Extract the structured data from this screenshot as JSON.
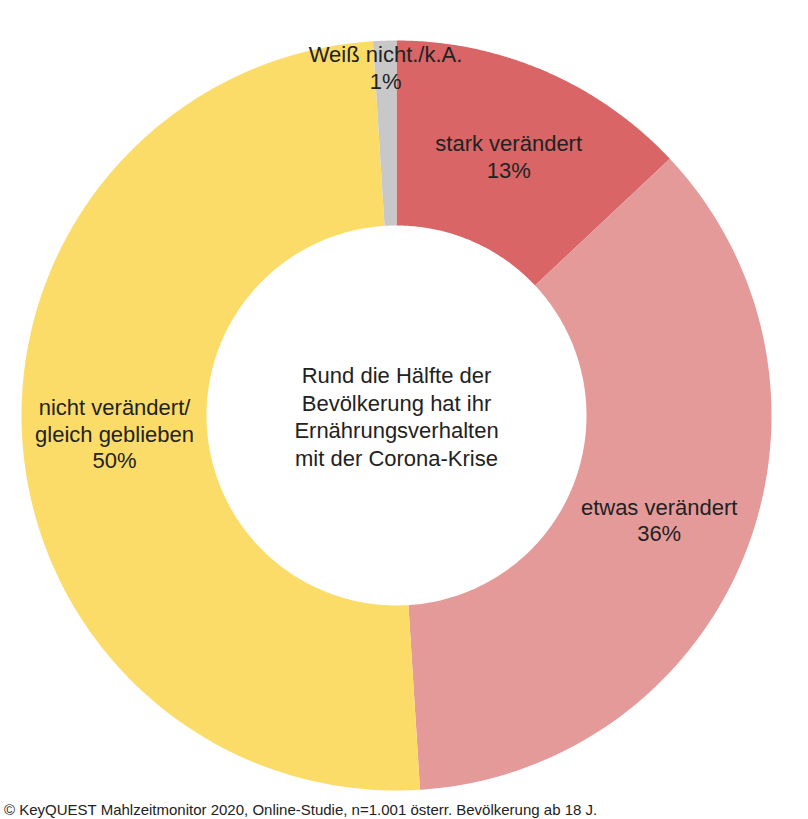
{
  "chart_data": {
    "type": "pie",
    "title": "Rund die Hälfte der\nBevölkerung hat ihr\nErnährungsverhalten\nmit der Corona-Krise",
    "caption": "© KeyQUEST Mahlzeitmonitor 2020, Online-Studie, n=1.001 österr. Bevölkerung ab 18 J.",
    "categories": [
      "stark verändert",
      "etwas verändert",
      "nicht verändert/\ngleich geblieben",
      "Weiß nicht./k.A."
    ],
    "values": [
      13,
      36,
      50,
      1
    ],
    "value_labels": [
      "13%",
      "36%",
      "50%",
      "1%"
    ],
    "colors": [
      "#d96566",
      "#e59a9a",
      "#fcdc68",
      "#c8c8c8"
    ],
    "data_labels": true,
    "tick_labels": false
  }
}
